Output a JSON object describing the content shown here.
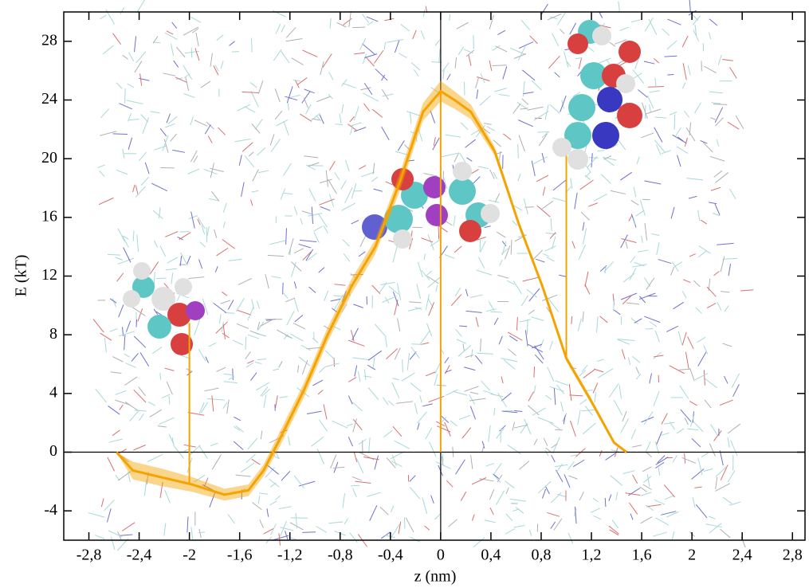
{
  "chart_data": {
    "type": "line",
    "xlabel": "z (nm)",
    "ylabel": "E (kT)",
    "x": [
      -2.58,
      -2.45,
      -2.23,
      -1.98,
      -1.72,
      -1.53,
      -1.41,
      -1.28,
      -1.09,
      -0.9,
      -0.71,
      -0.52,
      -0.33,
      -0.14,
      0,
      0.11,
      0.24,
      0.43,
      0.62,
      0.81,
      1.0,
      1.19,
      1.38,
      1.48
    ],
    "series": [
      {
        "name": "E",
        "color": "#f5a300",
        "values": [
          0,
          -1.25,
          -1.7,
          -2.2,
          -2.9,
          -2.6,
          -1.25,
          0.9,
          4.2,
          8,
          11.3,
          14,
          18.3,
          23.2,
          24.6,
          24,
          23.2,
          20.5,
          15.6,
          11.3,
          6.4,
          3.6,
          0.65,
          0
        ],
        "errors": [
          0,
          0.6,
          0.6,
          0.5,
          0.4,
          0.4,
          0.4,
          0.5,
          0.5,
          0.5,
          0.5,
          0.5,
          0.6,
          0.6,
          0.7,
          0.6,
          0.5,
          0.3,
          0.2,
          0.2,
          0.2,
          0.2,
          0.1,
          0
        ]
      }
    ],
    "markers": [
      {
        "x": -2,
        "y": [
          -2.2,
          8.8
        ]
      },
      {
        "x": 0,
        "y": [
          0,
          24.6
        ]
      },
      {
        "x": 1,
        "y": [
          6.4,
          20.2
        ]
      }
    ],
    "xlim": [
      -3,
      2.9
    ],
    "ylim": [
      -6,
      30
    ],
    "xticks": [
      {
        "value": -2.8,
        "label": "-2,8"
      },
      {
        "value": -2.4,
        "label": "-2,4"
      },
      {
        "value": -2,
        "label": "-2"
      },
      {
        "value": -1.6,
        "label": "-1,6"
      },
      {
        "value": -1.2,
        "label": "-1,2"
      },
      {
        "value": -0.8,
        "label": "-0,8"
      },
      {
        "value": -0.4,
        "label": "-0,4"
      },
      0,
      {
        "value": 0.4,
        "label": "0,4"
      },
      {
        "value": 0.8,
        "label": "0,8"
      },
      {
        "value": 1.2,
        "label": "1,2"
      },
      {
        "value": 1.6,
        "label": "1,6"
      },
      2,
      {
        "value": 2.4,
        "label": "2,4"
      },
      {
        "value": 2.8,
        "label": "2,8"
      }
    ],
    "yticks": [
      -4,
      0,
      4,
      8,
      12,
      16,
      20,
      24,
      28
    ]
  }
}
